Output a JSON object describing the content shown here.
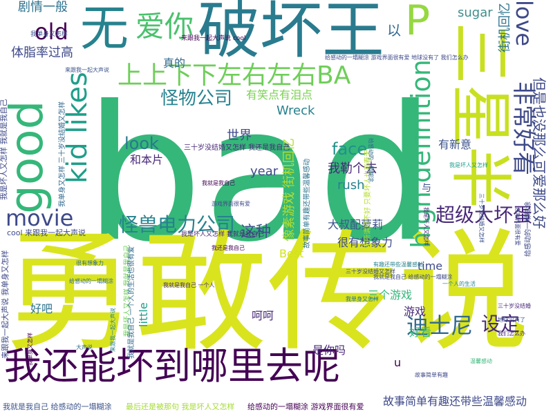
{
  "palette": {
    "background": "#ffffff",
    "colors": [
      "#440154",
      "#482878",
      "#3e4989",
      "#31688e",
      "#26828e",
      "#1f9e89",
      "#35b779",
      "#6ece58",
      "#b5de2b",
      "#fde725"
    ]
  },
  "words": [
    {
      "text": "bad",
      "color": "#35b779",
      "orientation": "horizontal"
    },
    {
      "text": "勇敢传说",
      "color": "#d9e41f",
      "orientation": "horizontal"
    },
    {
      "text": "破坏王",
      "color": "#2a7b8e",
      "orientation": "horizontal"
    },
    {
      "text": "三星半",
      "color": "#c8e020",
      "orientation": "vertical"
    },
    {
      "text": "无",
      "color": "#26828e",
      "orientation": "horizontal"
    },
    {
      "text": "good",
      "color": "#35b779",
      "orientation": "vertical"
    },
    {
      "text": "我还能坏到哪里去呢",
      "color": "#440154",
      "orientation": "horizontal"
    },
    {
      "text": "上上下下左右左右BA",
      "color": "#6ece58",
      "orientation": "horizontal"
    },
    {
      "text": "P",
      "color": "#95d840",
      "orientation": "horizontal"
    },
    {
      "text": "爱你",
      "color": "#4ac16d",
      "orientation": "horizontal"
    },
    {
      "text": "kid likes",
      "color": "#1f9e89",
      "orientation": "vertical"
    },
    {
      "text": "high definition",
      "color": "#35b779",
      "orientation": "vertical"
    },
    {
      "text": "非常好看",
      "color": "#3e4989",
      "orientation": "vertical"
    },
    {
      "text": "love",
      "color": "#3e4989",
      "orientation": "vertical"
    },
    {
      "text": "old",
      "color": "#440154",
      "orientation": "horizontal"
    },
    {
      "text": "movie",
      "color": "#3e4989",
      "orientation": "horizontal"
    },
    {
      "text": "迪士尼",
      "color": "#31688e",
      "orientation": "horizontal"
    },
    {
      "text": "设定",
      "color": "#482878",
      "orientation": "horizontal"
    },
    {
      "text": "怪兽电力公司",
      "color": "#26828e",
      "orientation": "horizontal"
    },
    {
      "text": "超级大坏蛋",
      "color": "#482878",
      "orientation": "horizontal"
    },
    {
      "text": "但是也没那么可爱那么好",
      "color": "#3e4989",
      "orientation": "vertical"
    },
    {
      "text": "怪物公司",
      "color": "#26828e",
      "orientation": "horizontal"
    },
    {
      "text": "face",
      "color": "#21918c",
      "orientation": "horizontal"
    },
    {
      "text": "look",
      "color": "#2a788e",
      "orientation": "horizontal"
    },
    {
      "text": "像素游戏 街机回忆",
      "color": "#b5de2b",
      "orientation": "vertical"
    },
    {
      "text": "街机回忆 尤其是",
      "color": "#2c728e",
      "orientation": "vertical"
    },
    {
      "text": "这种",
      "color": "#3b528b",
      "orientation": "horizontal"
    },
    {
      "text": "剧情一般",
      "color": "#2c728e",
      "orientation": "horizontal"
    },
    {
      "text": "体脂率过高",
      "color": "#3e4989",
      "orientation": "horizontal"
    },
    {
      "text": "以",
      "color": "#31688e",
      "orientation": "horizontal"
    },
    {
      "text": "有笑点有泪点",
      "color": "#7ad151",
      "orientation": "horizontal"
    },
    {
      "text": "真的",
      "color": "#31688e",
      "orientation": "horizontal"
    },
    {
      "text": "sugar",
      "color": "#3b8e8c",
      "orientation": "horizontal"
    },
    {
      "text": "Wreck",
      "color": "#26828e",
      "orientation": "horizontal"
    },
    {
      "text": "世界",
      "color": "#3e4989",
      "orientation": "horizontal"
    },
    {
      "text": "和本片",
      "color": "#482878",
      "orientation": "horizontal"
    },
    {
      "text": "我勒个去",
      "color": "#482878",
      "orientation": "horizontal"
    },
    {
      "text": "有新意",
      "color": "#3b528b",
      "orientation": "horizontal"
    },
    {
      "text": "year",
      "color": "#3e4989",
      "orientation": "horizontal"
    },
    {
      "text": "rush",
      "color": "#26828e",
      "orientation": "horizontal"
    },
    {
      "text": "大叔配萝莉",
      "color": "#3b528b",
      "orientation": "horizontal"
    },
    {
      "text": "很有想象力",
      "color": "#3e4989",
      "orientation": "horizontal"
    },
    {
      "text": "Best",
      "color": "#d2e21b",
      "orientation": "horizontal"
    },
    {
      "text": "time",
      "color": "#3e4989",
      "orientation": "horizontal"
    },
    {
      "text": "三个游戏",
      "color": "#35b779",
      "orientation": "horizontal"
    },
    {
      "text": "游戏",
      "color": "#482878",
      "orientation": "horizontal"
    },
    {
      "text": "好看",
      "color": "#35b779",
      "orientation": "horizontal"
    },
    {
      "text": "呵呵",
      "color": "#482878",
      "orientation": "horizontal"
    },
    {
      "text": "好吧",
      "color": "#2c728e",
      "orientation": "horizontal"
    },
    {
      "text": "little",
      "color": "#1f9e89",
      "orientation": "vertical"
    },
    {
      "text": "是你吗",
      "color": "#482878",
      "orientation": "horizontal"
    },
    {
      "text": "故事简单有趣还带些温馨感动",
      "color": "#3e4989",
      "orientation": "horizontal"
    },
    {
      "text": "u",
      "color": "#440154",
      "orientation": "horizontal"
    },
    {
      "text": "与",
      "color": "#3b528b",
      "orientation": "horizontal"
    },
    {
      "text": "cool 来跟我一起大声说",
      "color": "#3e4989",
      "orientation": "horizontal"
    },
    {
      "text": "我就是我自己 给感动的一塌糊涂",
      "color": "#3b528b",
      "orientation": "horizontal"
    },
    {
      "text": "最后还是被那句 我是坏人又怎样",
      "color": "#a5db36",
      "orientation": "horizontal"
    },
    {
      "text": "给感动的一塌糊涂 游戏界面很有爱",
      "color": "#440154",
      "orientation": "horizontal"
    },
    {
      "text": "我是坏人又怎样 我就是我自己",
      "color": "#3e4989",
      "orientation": "vertical"
    },
    {
      "text": "我单身又怎样 三十岁没结婚又怎样",
      "color": "#31688e",
      "orientation": "vertical"
    },
    {
      "text": "来跟我一起大声说 我单身又怎样",
      "color": "#3e4989",
      "orientation": "vertical"
    },
    {
      "text": "我是坏人又怎样 我就是我自己",
      "color": "#6ece58",
      "orientation": "vertical"
    },
    {
      "text": "三十岁没结婚又怎样 我还是我自己",
      "color": "#482878",
      "orientation": "horizontal"
    },
    {
      "text": "我就是我自己 一个人的生活也很有爱",
      "color": "#31688e",
      "orientation": "vertical"
    },
    {
      "text": "故事简单有趣还带些温馨感动",
      "color": "#2c728e",
      "orientation": "vertical"
    },
    {
      "text": "无所谓好不好 只要坏人也有春天",
      "color": "#b5de2b",
      "orientation": "vertical"
    },
    {
      "text": "给感动的一塌糊涂",
      "color": "#3e4989",
      "orientation": "vertical"
    },
    {
      "text": "我是坏人又怎样 我就是我自己",
      "color": "#482878",
      "orientation": "horizontal"
    },
    {
      "text": "来跟我一起大声说 cool",
      "color": "#440154",
      "orientation": "horizontal"
    },
    {
      "text": "我单身又怎样",
      "color": "#3b528b",
      "orientation": "horizontal"
    },
    {
      "text": "给感动的一塌糊涂 游戏界面很有爱 地球没有了 我们怎么办",
      "color": "#3e4989",
      "orientation": "horizontal"
    },
    {
      "text": "有趣还带些温馨感动",
      "color": "#26828e",
      "orientation": "horizontal"
    },
    {
      "text": "我就是我自己",
      "color": "#440154",
      "orientation": "horizontal"
    },
    {
      "text": "很有想象力",
      "color": "#31688e",
      "orientation": "horizontal"
    },
    {
      "text": "我就是我自己 一个人",
      "color": "#482878",
      "orientation": "horizontal"
    },
    {
      "text": "三十岁没结婚又怎样",
      "color": "#3e4989",
      "orientation": "horizontal"
    },
    {
      "text": "我是坏人又怎样",
      "color": "#1f9e89",
      "orientation": "horizontal"
    },
    {
      "text": "来跟我一起大声说",
      "color": "#3b528b",
      "orientation": "horizontal"
    },
    {
      "text": "我单身又怎样",
      "color": "#2c728e",
      "orientation": "horizontal"
    },
    {
      "text": "三十岁没结婚",
      "color": "#482878",
      "orientation": "horizontal"
    },
    {
      "text": "游戏界面很有爱",
      "color": "#3e4989",
      "orientation": "horizontal"
    },
    {
      "text": "给感动的一塌糊涂",
      "color": "#31688e",
      "orientation": "horizontal"
    },
    {
      "text": "我还是我自己",
      "color": "#440154",
      "orientation": "horizontal"
    },
    {
      "text": "一个人的生活",
      "color": "#26828e",
      "orientation": "horizontal"
    },
    {
      "text": "地球没有了",
      "color": "#3b528b",
      "orientation": "horizontal"
    },
    {
      "text": "我们怎么办",
      "color": "#482878",
      "orientation": "horizontal"
    },
    {
      "text": "故事简单有趣",
      "color": "#3e4989",
      "orientation": "horizontal"
    },
    {
      "text": "温馨感动",
      "color": "#35b779",
      "orientation": "horizontal"
    },
    {
      "text": "大声说",
      "color": "#31688e",
      "orientation": "horizontal"
    },
    {
      "text": "我就是我自己 给感动的一塌糊涂",
      "color": "#3e4989",
      "orientation": "horizontal"
    },
    {
      "text": "我是坏人又怎样",
      "color": "#482878",
      "orientation": "vertical"
    },
    {
      "text": "三十岁没结婚又怎样",
      "color": "#3b528b",
      "orientation": "vertical"
    },
    {
      "text": "来跟我一起大声说",
      "color": "#26828e",
      "orientation": "vertical"
    },
    {
      "text": "我单身又怎样",
      "color": "#440154",
      "orientation": "vertical"
    },
    {
      "text": "给感动的一塌糊涂",
      "color": "#31688e",
      "orientation": "vertical"
    },
    {
      "text": "游戏界面很有爱",
      "color": "#3e4989",
      "orientation": "vertical"
    }
  ]
}
